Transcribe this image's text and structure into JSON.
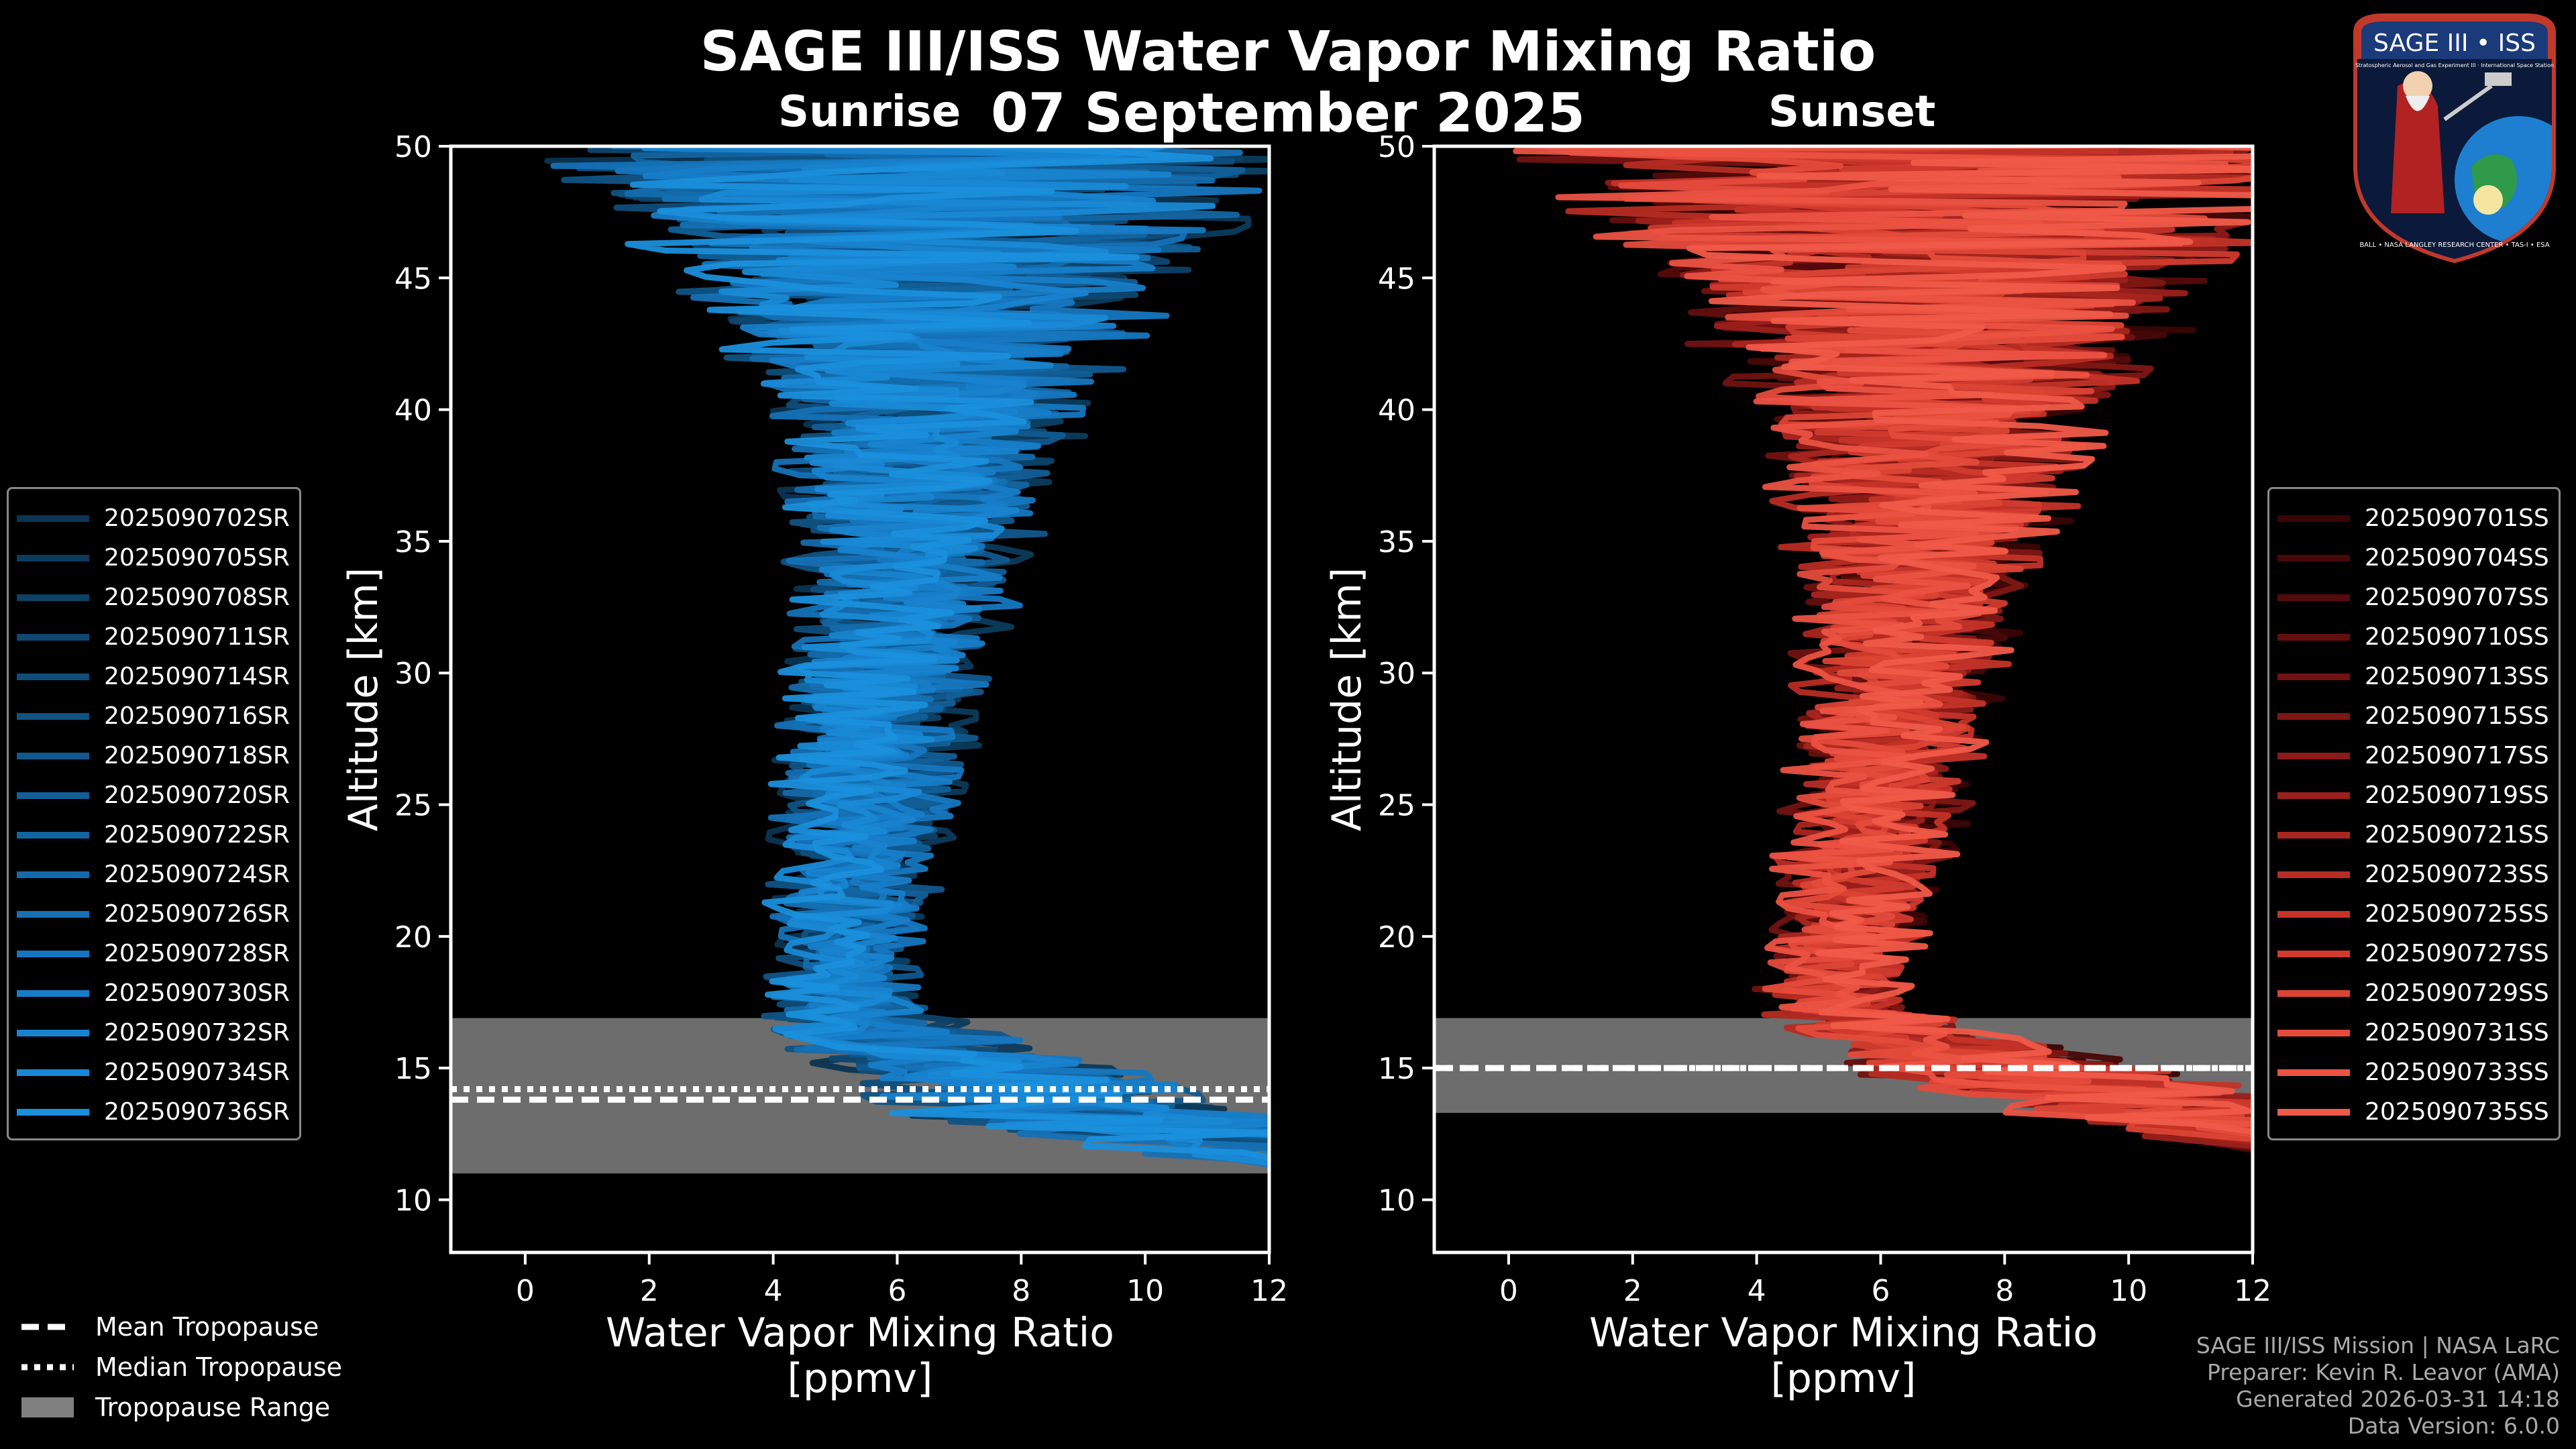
{
  "header": {
    "title": "SAGE III/ISS Water Vapor Mixing Ratio",
    "date": "07 September 2025",
    "sunrise_label": "Sunrise",
    "sunset_label": "Sunset"
  },
  "logo": {
    "text_top": "SAGE III • ISS",
    "text_sub": "Stratospheric Aerosol and Gas Experiment III · International Space Station",
    "text_ring": "BALL • NASA LANGLEY RESEARCH CENTER • TAS-I • ESA"
  },
  "chart_data": [
    {
      "type": "line",
      "panel": "sunrise",
      "title": "Sunrise",
      "xlabel": "Water Vapor Mixing Ratio\n[ppmv]",
      "xlabel_lines": [
        "Water Vapor Mixing Ratio",
        "[ppmv]"
      ],
      "ylabel": "Altitude [km]",
      "xlim": [
        -1.2,
        12
      ],
      "ylim": [
        8,
        50
      ],
      "xticks": [
        0,
        2,
        4,
        6,
        8,
        10,
        12
      ],
      "yticks": [
        10,
        15,
        20,
        25,
        30,
        35,
        40,
        45,
        50
      ],
      "tropopause": {
        "mean": 13.8,
        "median": 14.2,
        "range": [
          11.0,
          16.9
        ]
      },
      "series_color_dark": "#0a3a5e",
      "series_color_light": "#1e8fd6",
      "series": [
        {
          "name": "2025090702SR",
          "color": "#0b3552"
        },
        {
          "name": "2025090705SR",
          "color": "#0c3b5c"
        },
        {
          "name": "2025090708SR",
          "color": "#0d4166"
        },
        {
          "name": "2025090711SR",
          "color": "#0e4770"
        },
        {
          "name": "2025090714SR",
          "color": "#0f4d7a"
        },
        {
          "name": "2025090716SR",
          "color": "#105384"
        },
        {
          "name": "2025090718SR",
          "color": "#11598e"
        },
        {
          "name": "2025090720SR",
          "color": "#125f98"
        },
        {
          "name": "2025090722SR",
          "color": "#1365a2"
        },
        {
          "name": "2025090724SR",
          "color": "#146bac"
        },
        {
          "name": "2025090726SR",
          "color": "#1571b6"
        },
        {
          "name": "2025090728SR",
          "color": "#1677c0"
        },
        {
          "name": "2025090730SR",
          "color": "#177dc8"
        },
        {
          "name": "2025090732SR",
          "color": "#1883cf"
        },
        {
          "name": "2025090734SR",
          "color": "#1989d5"
        },
        {
          "name": "2025090736SR",
          "color": "#1a8fdb"
        }
      ],
      "profile_envelope": [
        {
          "alt": 11.5,
          "center": 12.0,
          "spread": 1.0
        },
        {
          "alt": 13.0,
          "center": 9.5,
          "spread": 3.0
        },
        {
          "alt": 15.0,
          "center": 7.0,
          "spread": 2.2
        },
        {
          "alt": 16.5,
          "center": 5.5,
          "spread": 1.3
        },
        {
          "alt": 18.0,
          "center": 5.0,
          "spread": 0.9
        },
        {
          "alt": 20.0,
          "center": 5.1,
          "spread": 0.9
        },
        {
          "alt": 25.0,
          "center": 5.4,
          "spread": 1.1
        },
        {
          "alt": 30.0,
          "center": 5.8,
          "spread": 1.3
        },
        {
          "alt": 35.0,
          "center": 6.2,
          "spread": 1.6
        },
        {
          "alt": 40.0,
          "center": 6.5,
          "spread": 2.2
        },
        {
          "alt": 45.0,
          "center": 6.5,
          "spread": 4.0
        },
        {
          "alt": 50.0,
          "center": 6.5,
          "spread": 6.0
        }
      ]
    },
    {
      "type": "line",
      "panel": "sunset",
      "title": "Sunset",
      "xlabel": "Water Vapor Mixing Ratio\n[ppmv]",
      "xlabel_lines": [
        "Water Vapor Mixing Ratio",
        "[ppmv]"
      ],
      "ylabel": "Altitude [km]",
      "xlim": [
        -1.2,
        12
      ],
      "ylim": [
        8,
        50
      ],
      "xticks": [
        0,
        2,
        4,
        6,
        8,
        10,
        12
      ],
      "yticks": [
        10,
        15,
        20,
        25,
        30,
        35,
        40,
        45,
        50
      ],
      "tropopause": {
        "mean": 15.0,
        "median": 15.0,
        "range": [
          13.3,
          16.9
        ]
      },
      "series_color_dark": "#3a0505",
      "series_color_light": "#f05a48",
      "series": [
        {
          "name": "2025090701SS",
          "color": "#3a0505"
        },
        {
          "name": "2025090704SS",
          "color": "#470808"
        },
        {
          "name": "2025090707SS",
          "color": "#550b0b"
        },
        {
          "name": "2025090710SS",
          "color": "#630f0e"
        },
        {
          "name": "2025090713SS",
          "color": "#711311"
        },
        {
          "name": "2025090715SS",
          "color": "#7f1714"
        },
        {
          "name": "2025090717SS",
          "color": "#8d1b17"
        },
        {
          "name": "2025090719SS",
          "color": "#9b201b"
        },
        {
          "name": "2025090721SS",
          "color": "#a9261f"
        },
        {
          "name": "2025090723SS",
          "color": "#b72c23"
        },
        {
          "name": "2025090725SS",
          "color": "#c53328"
        },
        {
          "name": "2025090727SS",
          "color": "#d13b2e"
        },
        {
          "name": "2025090729SS",
          "color": "#db4334"
        },
        {
          "name": "2025090731SS",
          "color": "#e44b3b"
        },
        {
          "name": "2025090733SS",
          "color": "#eb5242"
        },
        {
          "name": "2025090735SS",
          "color": "#f05a48"
        }
      ],
      "profile_envelope": [
        {
          "alt": 12.0,
          "center": 12.0,
          "spread": 1.0
        },
        {
          "alt": 13.5,
          "center": 10.5,
          "spread": 2.5
        },
        {
          "alt": 15.0,
          "center": 8.0,
          "spread": 2.5
        },
        {
          "alt": 16.5,
          "center": 6.0,
          "spread": 1.2
        },
        {
          "alt": 18.0,
          "center": 5.3,
          "spread": 0.9
        },
        {
          "alt": 20.0,
          "center": 5.5,
          "spread": 0.9
        },
        {
          "alt": 25.0,
          "center": 6.0,
          "spread": 1.1
        },
        {
          "alt": 30.0,
          "center": 6.4,
          "spread": 1.3
        },
        {
          "alt": 35.0,
          "center": 6.7,
          "spread": 1.8
        },
        {
          "alt": 40.0,
          "center": 6.9,
          "spread": 2.6
        },
        {
          "alt": 45.0,
          "center": 7.0,
          "spread": 4.5
        },
        {
          "alt": 50.0,
          "center": 7.0,
          "spread": 6.5
        }
      ]
    }
  ],
  "bottom_legend": [
    {
      "label": "Mean Tropopause",
      "style": "dashed"
    },
    {
      "label": "Median Tropopause",
      "style": "dotted"
    },
    {
      "label": "Tropopause Range",
      "style": "fill"
    }
  ],
  "colors": {
    "background": "#000000",
    "tropopause_fill": "#808080",
    "footer_text": "#a9a9a9"
  },
  "footer": {
    "line1": "SAGE III/ISS Mission | NASA LaRC",
    "line2": "Preparer: Kevin R. Leavor (AMA)",
    "line3": "Generated 2026-03-31 14:18",
    "line4": "Data Version: 6.0.0"
  }
}
